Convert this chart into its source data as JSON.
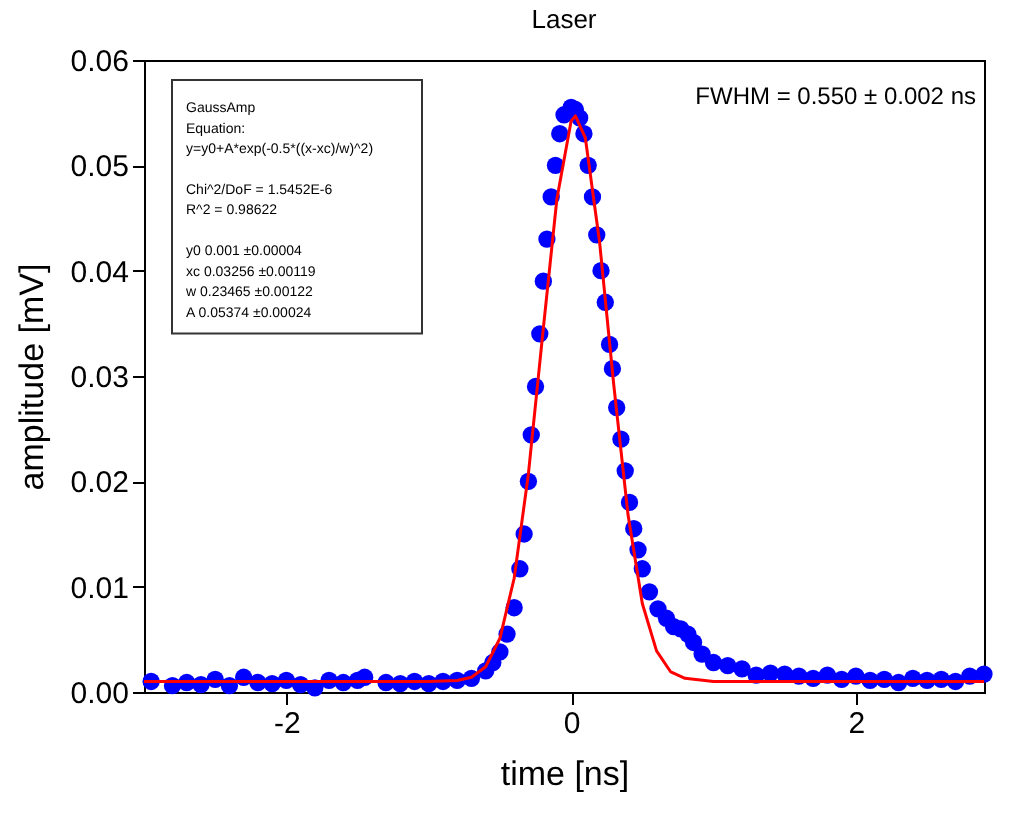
{
  "chart_data": {
    "type": "scatter",
    "title": "Laser",
    "xlabel": "time [ns]",
    "ylabel": "amplitude [mV]",
    "xlim": [
      -3,
      2.9
    ],
    "ylim": [
      0,
      0.06
    ],
    "xticks": [
      -2,
      0,
      2
    ],
    "yticks": [
      {
        "value": 0,
        "label": "0.00"
      },
      {
        "value": 0.01,
        "label": "0.01"
      },
      {
        "value": 0.02,
        "label": "0.02"
      },
      {
        "value": 0.03,
        "label": "0.03"
      },
      {
        "value": 0.04,
        "label": "0.04"
      },
      {
        "value": 0.05,
        "label": "0.05"
      },
      {
        "value": 0.06,
        "label": "0.06"
      }
    ],
    "grid": false,
    "annotations": [
      "GaussAmp",
      "Equation:",
      "y=y0+A*exp(-0.5*((x-xc)/w)^2)",
      "Chi^2/DoF = 1.5452E-6",
      "R^2 = 0.98622",
      "y0 0.001 ±0.00004",
      "xc 0.03256 ±0.00119",
      "w 0.23465 ±0.00122",
      "A 0.05374 ±0.00024",
      "FWHM = 0.550 ± 0.002 ns"
    ],
    "series": [
      {
        "color": "#0000ff",
        "marker": "circle",
        "x": [
          -2.95,
          -2.8,
          -2.7,
          -2.6,
          -2.5,
          -2.4,
          -2.3,
          -2.2,
          -2.1,
          -2.0,
          -1.9,
          -1.8,
          -1.7,
          -1.6,
          -1.5,
          -1.45,
          -1.3,
          -1.2,
          -1.1,
          -1.0,
          -0.9,
          -0.8,
          -0.7,
          -0.6,
          -0.55,
          -0.5,
          -0.45,
          -0.4,
          -0.36,
          -0.33,
          -0.3,
          -0.28,
          -0.25,
          -0.22,
          -0.195,
          -0.17,
          -0.14,
          -0.11,
          -0.08,
          -0.05,
          0.0,
          0.03,
          0.06,
          0.09,
          0.12,
          0.15,
          0.18,
          0.21,
          0.24,
          0.27,
          0.29,
          0.32,
          0.35,
          0.38,
          0.41,
          0.44,
          0.47,
          0.5,
          0.55,
          0.61,
          0.67,
          0.72,
          0.77,
          0.82,
          0.86,
          0.92,
          1.0,
          1.1,
          1.2,
          1.3,
          1.4,
          1.5,
          1.6,
          1.7,
          1.8,
          1.9,
          2.0,
          2.1,
          2.2,
          2.3,
          2.4,
          2.5,
          2.6,
          2.7,
          2.8,
          2.9
        ],
        "values": [
          0.001,
          0.0006,
          0.0009,
          0.0007,
          0.0012,
          0.0006,
          0.0014,
          0.0009,
          0.0008,
          0.0011,
          0.0007,
          0.0004,
          0.0011,
          0.0009,
          0.0011,
          0.0014,
          0.0009,
          0.0008,
          0.001,
          0.0008,
          0.001,
          0.0011,
          0.0013,
          0.002,
          0.0028,
          0.0038,
          0.0055,
          0.008,
          0.0117,
          0.015,
          0.02,
          0.0244,
          0.029,
          0.034,
          0.039,
          0.043,
          0.047,
          0.05,
          0.053,
          0.0548,
          0.0555,
          0.0553,
          0.0545,
          0.053,
          0.05,
          0.047,
          0.0434,
          0.04,
          0.037,
          0.033,
          0.0307,
          0.027,
          0.024,
          0.021,
          0.018,
          0.0155,
          0.0135,
          0.0117,
          0.0095,
          0.0079,
          0.007,
          0.0062,
          0.006,
          0.0055,
          0.0047,
          0.0036,
          0.0028,
          0.0025,
          0.0022,
          0.0016,
          0.0018,
          0.0017,
          0.0015,
          0.0013,
          0.0016,
          0.0012,
          0.0015,
          0.0011,
          0.0012,
          0.0009,
          0.0013,
          0.0011,
          0.0012,
          0.001,
          0.0015,
          0.0017
        ]
      },
      {
        "type": "line",
        "color": "#ff0000",
        "marker": "none",
        "x": [
          -3,
          -1,
          -0.8,
          -0.7,
          -0.6,
          -0.5,
          -0.4,
          -0.3,
          -0.2,
          -0.1,
          0,
          0.03,
          0.1,
          0.2,
          0.3,
          0.4,
          0.5,
          0.6,
          0.7,
          0.8,
          1.0,
          2.9
        ],
        "values": [
          0.001,
          0.001,
          0.0011,
          0.0014,
          0.0024,
          0.0051,
          0.0108,
          0.0207,
          0.0339,
          0.0468,
          0.0542,
          0.0547,
          0.0526,
          0.0427,
          0.0291,
          0.0168,
          0.0084,
          0.0039,
          0.0019,
          0.0013,
          0.001,
          0.001
        ]
      }
    ]
  }
}
